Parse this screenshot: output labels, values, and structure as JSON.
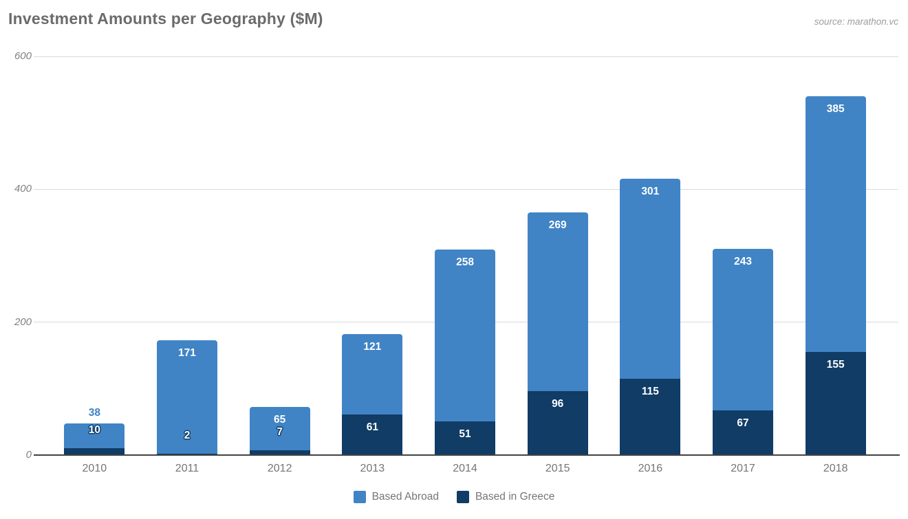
{
  "header": {
    "title": "Investment Amounts per Geography ($M)",
    "source": "source: marathon.vc"
  },
  "chart_data": {
    "type": "bar",
    "stacked": true,
    "title": "Investment Amounts per Geography ($M)",
    "xlabel": "",
    "ylabel": "",
    "categories": [
      "2010",
      "2011",
      "2012",
      "2013",
      "2014",
      "2015",
      "2016",
      "2017",
      "2018"
    ],
    "series": [
      {
        "name": "Based Abroad",
        "color": "#4084c6",
        "values": [
          38,
          171,
          65,
          121,
          258,
          269,
          301,
          243,
          385
        ]
      },
      {
        "name": "Based in Greece",
        "color": "#103c66",
        "values": [
          10,
          2,
          7,
          61,
          51,
          96,
          115,
          67,
          155
        ]
      }
    ],
    "ylim": [
      0,
      600
    ],
    "yticks": [
      0,
      200,
      400,
      600
    ],
    "grid": true,
    "legend_position": "bottom",
    "colors": {
      "abroad": "#4084c6",
      "greece": "#103c66",
      "grid_line": "#d9d9d9",
      "axis_line": "#424242",
      "tick_text": "#808080",
      "category_text": "#757575",
      "title_text": "#6b6b6b",
      "source_text": "#9d9d9d",
      "label_text": "#ffffff",
      "outside_label_text": "#3d82c4"
    }
  }
}
